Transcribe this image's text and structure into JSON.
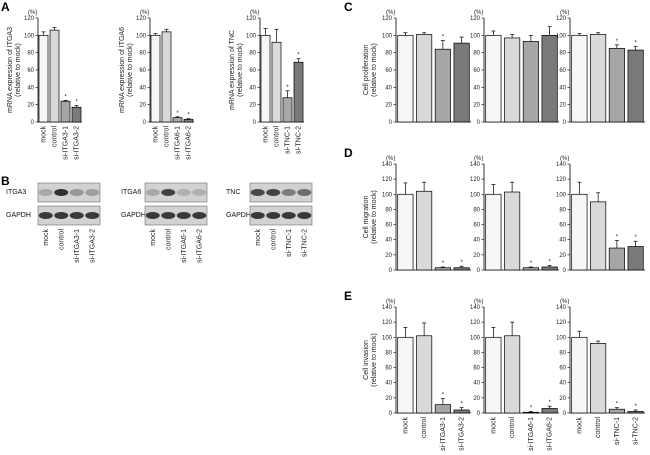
{
  "panel_letters": [
    "A",
    "B",
    "C",
    "D",
    "E"
  ],
  "units": "(%)",
  "wb_control": "GAPDH",
  "groups": {
    "itga3": [
      "mock",
      "control",
      "si-ITGA3-1",
      "si-ITGA3-2"
    ],
    "itga6": [
      "mock",
      "control",
      "si-ITGA6-1",
      "si-ITGA6-2"
    ],
    "tnc": [
      "mock",
      "control",
      "si-TNC-1",
      "si-TNC-2"
    ]
  },
  "western_blots": [
    {
      "target": "ITGA3",
      "control": "GAPDH",
      "lanes": [
        "mock",
        "control",
        "si-ITGA3-1",
        "si-ITGA3-2"
      ]
    },
    {
      "target": "ITGA6",
      "control": "GAPDH",
      "lanes": [
        "mock",
        "control",
        "si-ITGA6-1",
        "si-ITGA6-2"
      ]
    },
    {
      "target": "TNC",
      "control": "GAPDH",
      "lanes": [
        "mock",
        "control",
        "si-TNC-1",
        "si-TNC-2"
      ]
    }
  ],
  "bar_colors": [
    "#f7f7f7",
    "#d9d9d9",
    "#a6a6a6",
    "#7a7a7a"
  ],
  "chart_data": [
    {
      "id": "A1",
      "type": "bar",
      "panel": "A",
      "ylabel": "mRNA expression of ITGA3\n(relative to mock)",
      "ylim": [
        0,
        120
      ],
      "yticks": [
        0,
        20,
        40,
        60,
        80,
        100,
        120
      ],
      "group": "itga3",
      "values": [
        100,
        106,
        24,
        17
      ],
      "errors": [
        4,
        3,
        1,
        2
      ],
      "significant": [
        false,
        false,
        true,
        true
      ]
    },
    {
      "id": "A2",
      "type": "bar",
      "panel": "A",
      "ylabel": "mRNA expression of ITGA6\n(relative to mock)",
      "ylim": [
        0,
        120
      ],
      "yticks": [
        0,
        20,
        40,
        60,
        80,
        100,
        120
      ],
      "group": "itga6",
      "values": [
        100,
        104,
        5,
        3
      ],
      "errors": [
        2,
        3,
        1,
        1
      ],
      "significant": [
        false,
        false,
        true,
        true
      ]
    },
    {
      "id": "A3",
      "type": "bar",
      "panel": "A",
      "ylabel": "mRNA expression of TNC\n(relative to mock)",
      "ylim": [
        0,
        120
      ],
      "yticks": [
        0,
        20,
        40,
        60,
        80,
        100,
        120
      ],
      "group": "tnc",
      "values": [
        100,
        92,
        28,
        69
      ],
      "errors": [
        8,
        15,
        8,
        4
      ],
      "significant": [
        false,
        false,
        true,
        true
      ]
    },
    {
      "id": "C1",
      "type": "bar",
      "panel": "C",
      "ylabel": "Cell proliferation\n(relative to mock)",
      "ylim": [
        0,
        120
      ],
      "yticks": [
        0,
        20,
        40,
        60,
        80,
        100,
        120
      ],
      "group": "itga3",
      "values": [
        100,
        101,
        84,
        91
      ],
      "errors": [
        3,
        2,
        10,
        7
      ],
      "significant": [
        false,
        false,
        true,
        false
      ]
    },
    {
      "id": "C2",
      "type": "bar",
      "panel": "C",
      "ylabel": "",
      "ylim": [
        0,
        120
      ],
      "yticks": [
        0,
        20,
        40,
        60,
        80,
        100,
        120
      ],
      "group": "itga6",
      "values": [
        100,
        97,
        93,
        100
      ],
      "errors": [
        5,
        4,
        7,
        10
      ],
      "significant": [
        false,
        false,
        false,
        false
      ]
    },
    {
      "id": "C3",
      "type": "bar",
      "panel": "C",
      "ylabel": "",
      "ylim": [
        0,
        120
      ],
      "yticks": [
        0,
        20,
        40,
        60,
        80,
        100,
        120
      ],
      "group": "tnc",
      "values": [
        100,
        101,
        85,
        83
      ],
      "errors": [
        2,
        2,
        4,
        4
      ],
      "significant": [
        false,
        false,
        true,
        true
      ]
    },
    {
      "id": "D1",
      "type": "bar",
      "panel": "D",
      "ylabel": "Cell migration\n(relative to mock)",
      "ylim": [
        0,
        140
      ],
      "yticks": [
        0,
        20,
        40,
        60,
        80,
        100,
        120,
        140
      ],
      "group": "itga3",
      "values": [
        100,
        104,
        3,
        3
      ],
      "errors": [
        15,
        12,
        1,
        2
      ],
      "significant": [
        false,
        false,
        true,
        true
      ]
    },
    {
      "id": "D2",
      "type": "bar",
      "panel": "D",
      "ylabel": "",
      "ylim": [
        0,
        140
      ],
      "yticks": [
        0,
        20,
        40,
        60,
        80,
        100,
        120,
        140
      ],
      "group": "itga6",
      "values": [
        100,
        103,
        3,
        4
      ],
      "errors": [
        13,
        13,
        1,
        2
      ],
      "significant": [
        false,
        false,
        true,
        true
      ]
    },
    {
      "id": "D3",
      "type": "bar",
      "panel": "D",
      "ylabel": "",
      "ylim": [
        0,
        140
      ],
      "yticks": [
        0,
        20,
        40,
        60,
        80,
        100,
        120,
        140
      ],
      "group": "tnc",
      "values": [
        100,
        90,
        29,
        31
      ],
      "errors": [
        16,
        12,
        10,
        7
      ],
      "significant": [
        false,
        false,
        true,
        true
      ]
    },
    {
      "id": "E1",
      "type": "bar",
      "panel": "E",
      "ylabel": "Cell invasion\n(relative to mock)",
      "ylim": [
        0,
        140
      ],
      "yticks": [
        0,
        20,
        40,
        60,
        80,
        100,
        120,
        140
      ],
      "group": "itga3",
      "values": [
        100,
        102,
        11,
        4
      ],
      "errors": [
        13,
        17,
        8,
        3
      ],
      "significant": [
        false,
        false,
        true,
        true
      ]
    },
    {
      "id": "E2",
      "type": "bar",
      "panel": "E",
      "ylabel": "",
      "ylim": [
        0,
        140
      ],
      "yticks": [
        0,
        20,
        40,
        60,
        80,
        100,
        120,
        140
      ],
      "group": "itga6",
      "values": [
        100,
        102,
        1,
        6
      ],
      "errors": [
        13,
        18,
        1,
        3
      ],
      "significant": [
        false,
        false,
        true,
        true
      ]
    },
    {
      "id": "E3",
      "type": "bar",
      "panel": "E",
      "ylabel": "",
      "ylim": [
        0,
        140
      ],
      "yticks": [
        0,
        20,
        40,
        60,
        80,
        100,
        120,
        140
      ],
      "group": "tnc",
      "values": [
        100,
        92,
        5,
        2
      ],
      "errors": [
        8,
        3,
        2,
        2
      ],
      "significant": [
        false,
        false,
        true,
        true
      ]
    }
  ]
}
